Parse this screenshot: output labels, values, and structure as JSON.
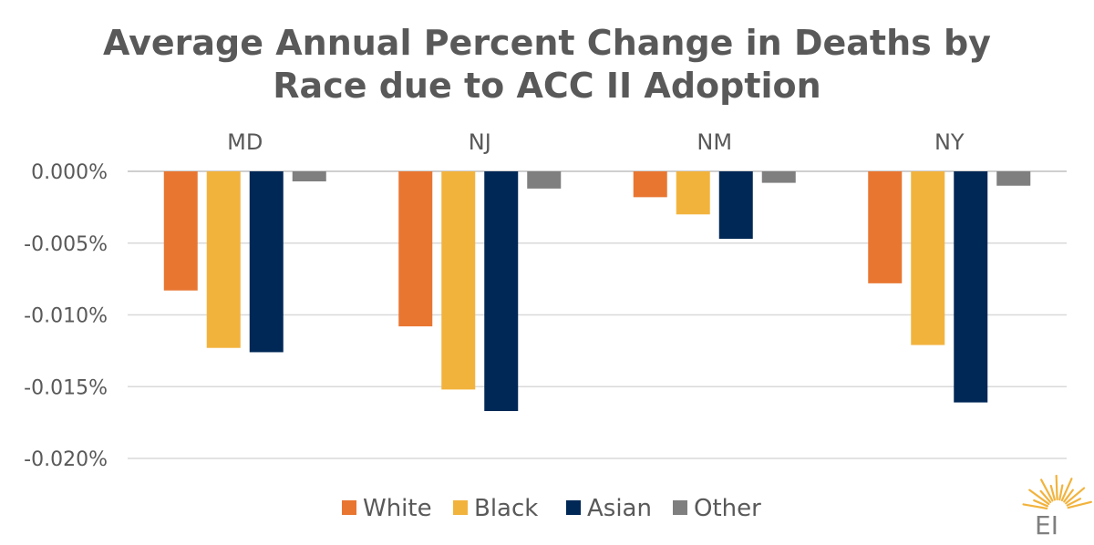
{
  "chart_data": {
    "type": "bar",
    "title_lines": [
      "Average Annual Percent Change in Deaths by",
      "Race due to ACC II Adoption"
    ],
    "categories": [
      "MD",
      "NJ",
      "NM",
      "NY"
    ],
    "series": [
      {
        "name": "White",
        "color": "#E87631",
        "values": [
          -0.0083,
          -0.0108,
          -0.0018,
          -0.0078
        ]
      },
      {
        "name": "Black",
        "color": "#F2B33D",
        "values": [
          -0.0123,
          -0.0152,
          -0.003,
          -0.0121
        ]
      },
      {
        "name": "Asian",
        "color": "#002856",
        "values": [
          -0.0126,
          -0.0167,
          -0.0047,
          -0.0161
        ]
      },
      {
        "name": "Other",
        "color": "#7F7F7F",
        "values": [
          -0.0007,
          -0.0012,
          -0.0008,
          -0.001
        ]
      }
    ],
    "ylim": [
      -0.02,
      0.0
    ],
    "yticks": [
      "0.000%",
      "-0.005%",
      "-0.010%",
      "-0.015%",
      "-0.020%"
    ],
    "ytick_values": [
      0,
      -0.005,
      -0.01,
      -0.015,
      -0.02
    ],
    "grid": true,
    "legend_position": "bottom"
  },
  "logo": {
    "text": "EI",
    "ray_color": "#F2B33D"
  }
}
